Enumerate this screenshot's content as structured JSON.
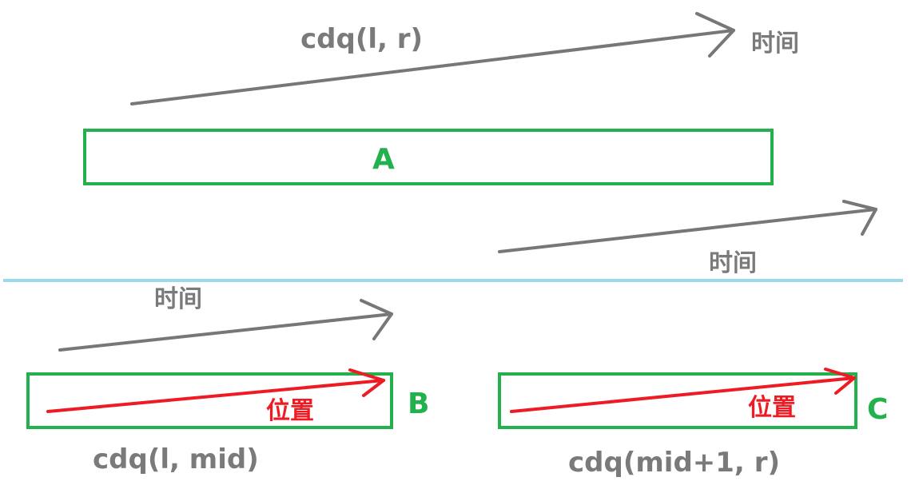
{
  "top": {
    "call": "cdq(l, r)",
    "time_label": "时间",
    "box_label": "A"
  },
  "right_side": {
    "time_label": "时间"
  },
  "left": {
    "time_label": "时间",
    "position_label": "位置",
    "box_label": "B",
    "call": "cdq(l, mid)"
  },
  "right": {
    "position_label": "位置",
    "box_label": "C",
    "call": "cdq(mid+1, r)"
  },
  "colors": {
    "arrow_gray": "#777777",
    "arrow_red": "#ed1c24",
    "box_green": "#22b14c",
    "divider": "#99d9ea",
    "text_gray": "#7a7a7a"
  }
}
